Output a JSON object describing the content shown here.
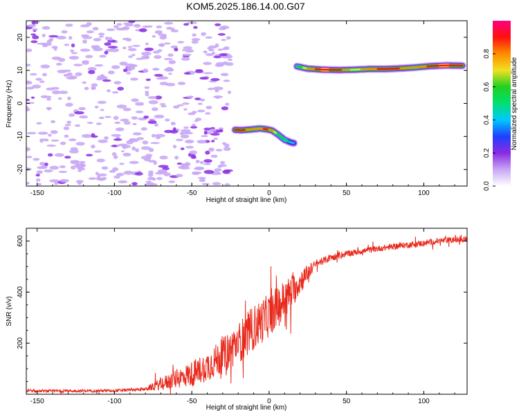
{
  "title": "KOM5.2025.186.14.00.G07",
  "colors": {
    "snr_line": "#e8291c",
    "colormap": [
      "#ffffff",
      "#c7a6f5",
      "#8a2be2",
      "#1e40ff",
      "#00c8ff",
      "#00e070",
      "#20d020",
      "#f0e020",
      "#ff8c00",
      "#ff1010",
      "#ff0080"
    ],
    "axis": "#000000"
  },
  "chart_data": [
    {
      "type": "heatmap",
      "xlabel": "Height of straight line (km)",
      "ylabel": "Frequency (Hz)",
      "xlim": [
        -157,
        128
      ],
      "ylim": [
        -25,
        25
      ],
      "xticks": [
        -150,
        -100,
        -50,
        0,
        50,
        100
      ],
      "yticks": [
        -20,
        -10,
        0,
        10,
        20
      ],
      "colorbar": {
        "label": "Normalized spectral amplitude",
        "range": [
          0,
          1
        ],
        "ticks": [
          "0.0",
          "0.2",
          "0.4",
          "0.6",
          "0.8"
        ]
      },
      "ridges": [
        {
          "note": "frequency peak vs height",
          "x": [
            -22,
            -18,
            -12,
            -6,
            -2,
            2,
            6,
            10,
            14,
            16
          ],
          "y": [
            -8.0,
            -8.1,
            -7.9,
            -7.6,
            -7.8,
            -8.2,
            -9.5,
            -11.0,
            -11.8,
            -12.0
          ],
          "amplitude": [
            0.85,
            0.9,
            0.8,
            0.75,
            0.9,
            0.8,
            0.6,
            0.55,
            0.45,
            0.4
          ]
        },
        {
          "x": [
            18,
            25,
            35,
            45,
            55,
            65,
            75,
            85,
            95,
            105,
            115,
            125
          ],
          "y": [
            11.2,
            10.5,
            10.2,
            10.1,
            10.2,
            10.4,
            10.4,
            10.6,
            10.9,
            11.3,
            11.5,
            11.4
          ],
          "amplitude": [
            0.55,
            0.75,
            0.95,
            0.9,
            0.7,
            0.8,
            0.9,
            0.85,
            0.75,
            0.9,
            0.95,
            0.85
          ]
        }
      ]
    },
    {
      "type": "line",
      "xlabel": "Height of straight line (km)",
      "ylabel": "SNR (v/v)",
      "xlim": [
        -157,
        128
      ],
      "ylim": [
        0,
        650
      ],
      "xticks": [
        -150,
        -100,
        -50,
        0,
        50,
        100
      ],
      "yticks": [
        200,
        400,
        600
      ],
      "series": [
        {
          "trend_x": [
            -157,
            -100,
            -80,
            -70,
            -60,
            -50,
            -40,
            -30,
            -20,
            -10,
            0,
            10,
            20,
            30,
            40,
            50,
            60,
            70,
            80,
            90,
            100,
            110,
            128
          ],
          "trend_y": [
            12,
            14,
            20,
            40,
            60,
            80,
            110,
            150,
            200,
            260,
            310,
            370,
            440,
            510,
            535,
            550,
            560,
            570,
            578,
            585,
            592,
            600,
            608
          ],
          "noise_amp_x": [
            -157,
            -80,
            -70,
            -50,
            -30,
            -10,
            10,
            20,
            30,
            60,
            128
          ],
          "noise_amp": [
            5,
            6,
            25,
            50,
            70,
            90,
            80,
            50,
            15,
            12,
            12
          ]
        }
      ]
    }
  ]
}
